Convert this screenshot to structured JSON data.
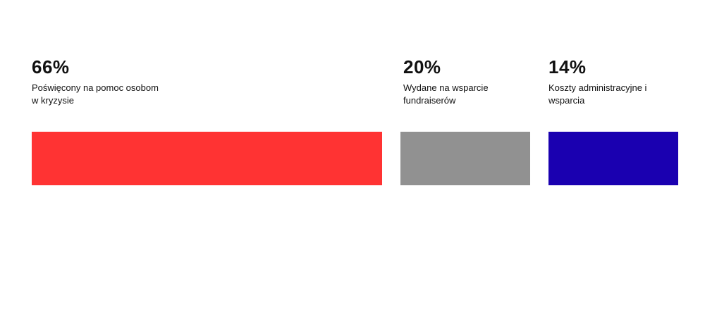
{
  "chart_data": {
    "type": "bar",
    "orientation": "horizontal-segments",
    "categories": [
      "Poświęcony na pomoc osobom\nw kryzysie",
      "Wydane na wsparcie\n fundraiserów",
      "Koszty administracyjne i\n wsparcia"
    ],
    "values": [
      66,
      20,
      14
    ],
    "value_labels": [
      "66%",
      "20%",
      "14%"
    ],
    "colors": [
      "#ff3333",
      "#919191",
      "#1a00b0"
    ],
    "grid": false,
    "legend": "none"
  }
}
